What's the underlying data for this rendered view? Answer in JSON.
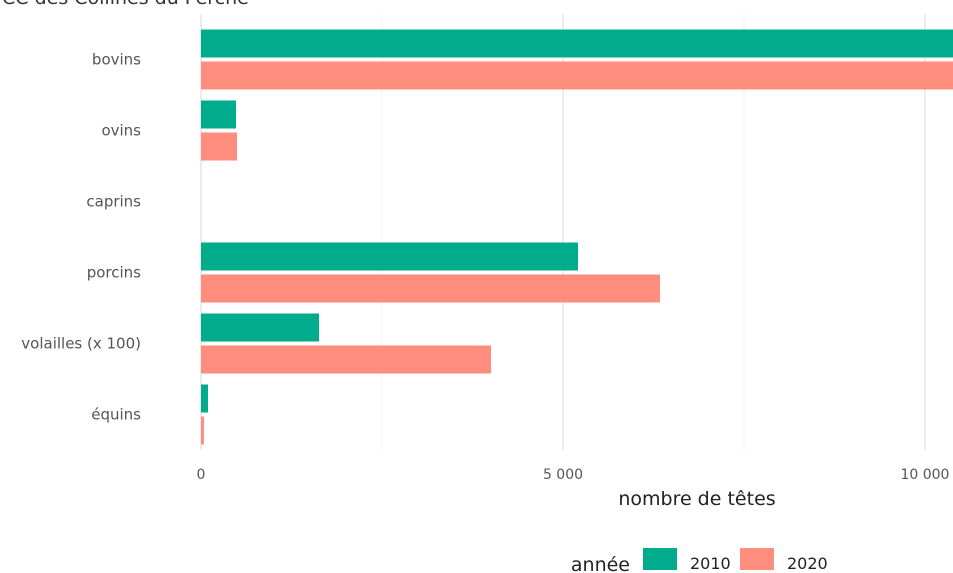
{
  "chart_data": {
    "type": "barh",
    "title": "CC des Collines du Perche",
    "categories": [
      "bovins",
      "ovins",
      "caprins",
      "porcins",
      "volailles (x 100)",
      "équins"
    ],
    "series": [
      {
        "name": "2010",
        "color": "#00ac8c",
        "values": [
          10500,
          483,
          0,
          5207,
          1630,
          97
        ]
      },
      {
        "name": "2020",
        "color": "#ff8d7e",
        "values": [
          10500,
          497,
          0,
          6340,
          4006,
          41
        ]
      }
    ],
    "xlim": [
      0,
      10387
    ],
    "xticks": [
      {
        "value": 0,
        "label": "0"
      },
      {
        "value": 5000,
        "label": "5 000"
      },
      {
        "value": 10000,
        "label": "10 000"
      }
    ],
    "minor_xticks": [
      2500,
      7500
    ],
    "xlabel": "nombre de têtes",
    "legend_title": "année",
    "legend_position": "bottom",
    "grid": true
  }
}
